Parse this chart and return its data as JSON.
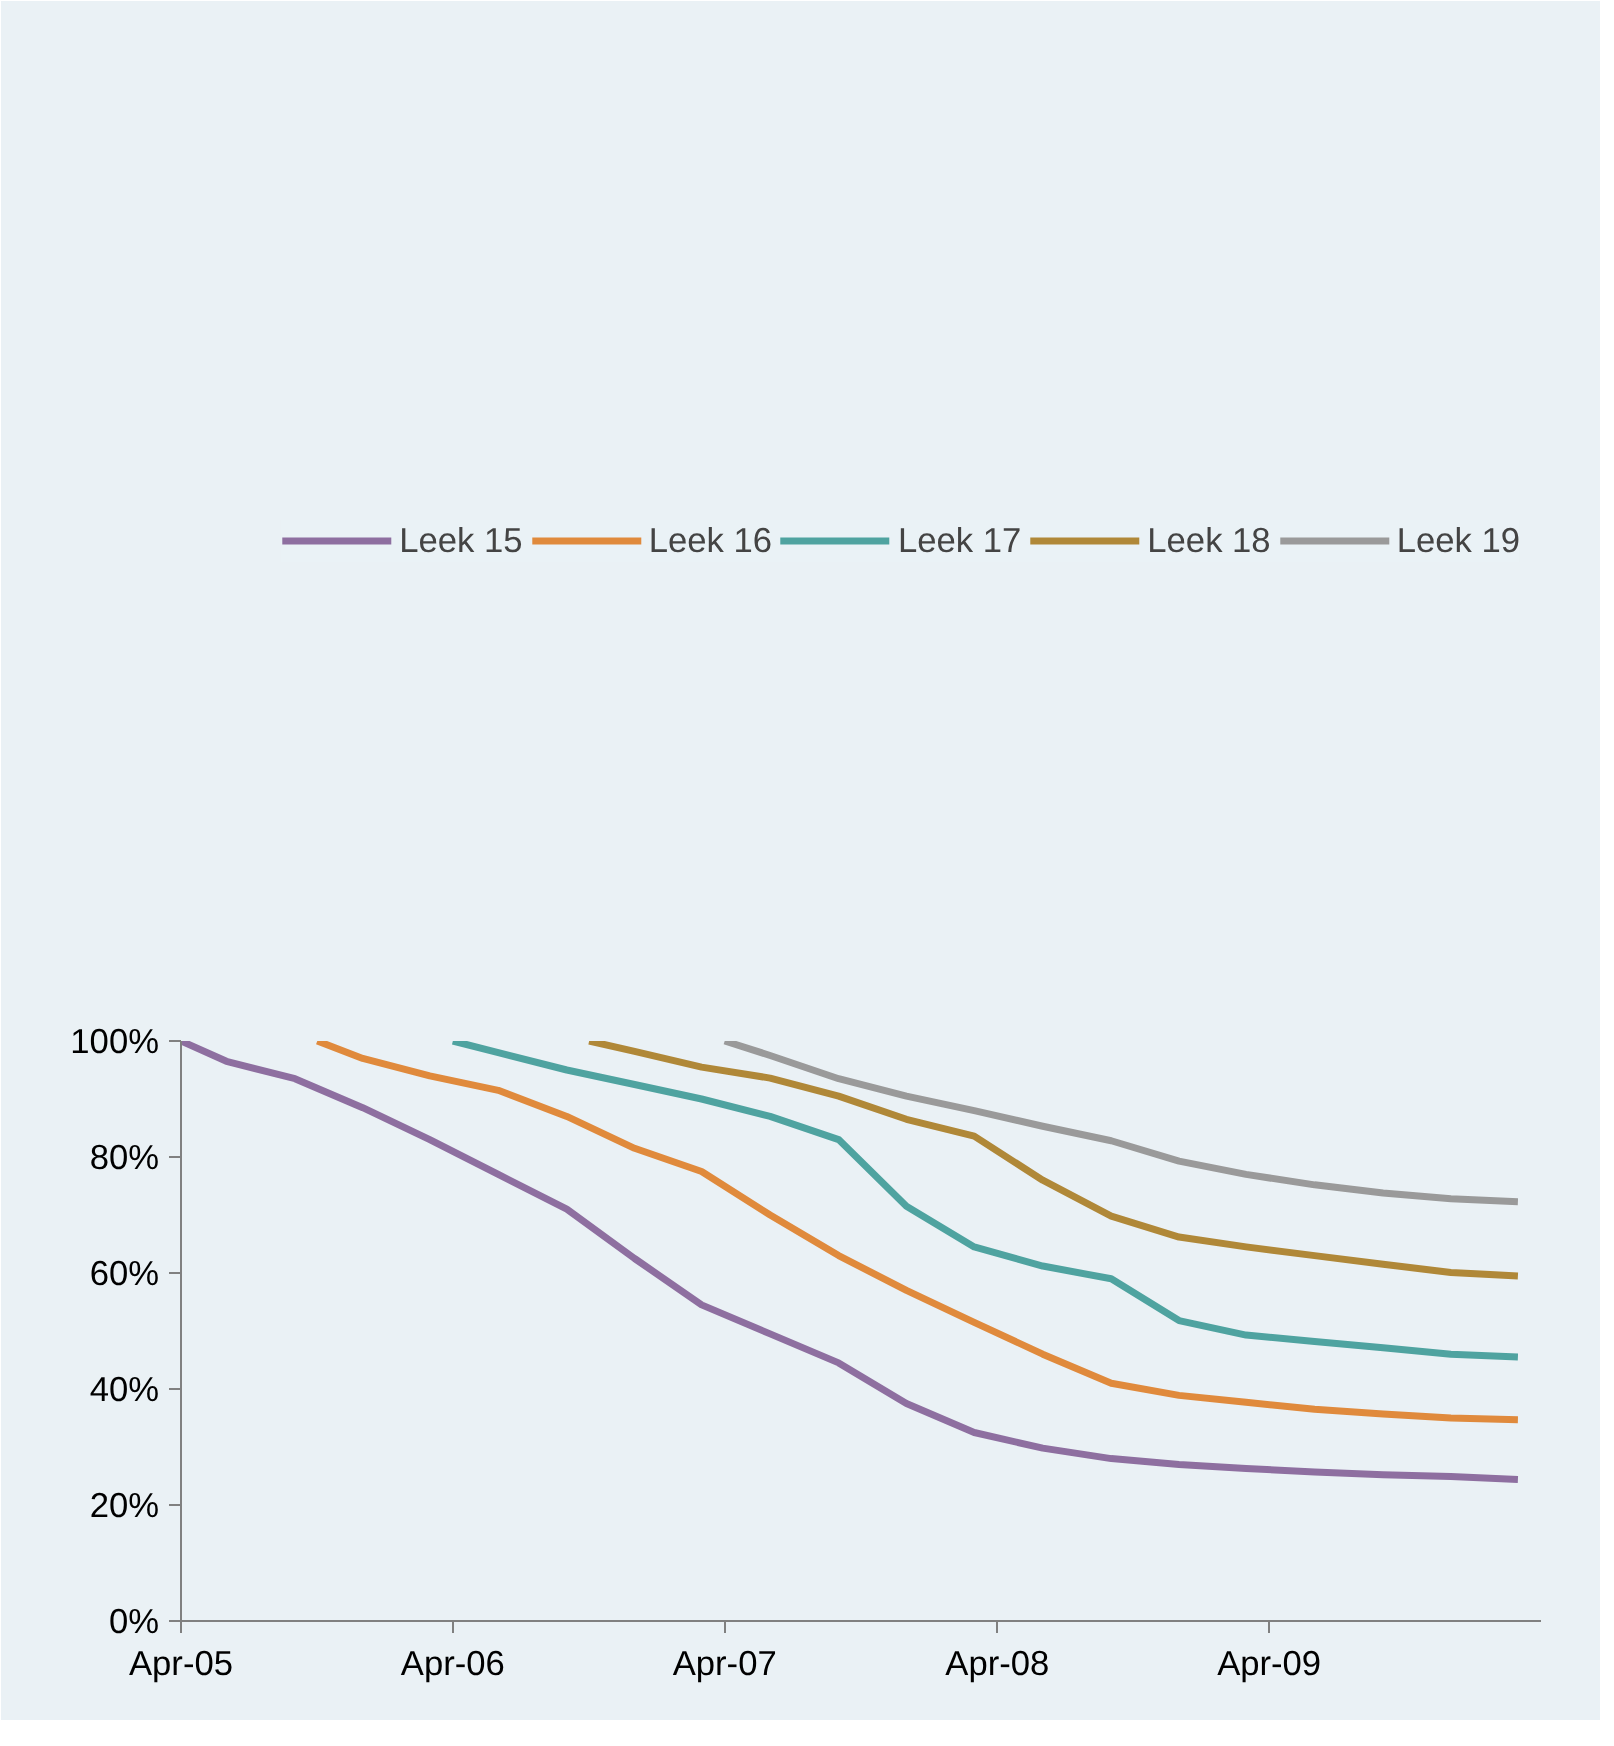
{
  "chart_data": {
    "type": "line",
    "legend": "top",
    "grid": false,
    "marker": "none",
    "line_style": "solid",
    "xlim": [
      "2005-04",
      "2010-04"
    ],
    "xticks": [
      {
        "value": "2005-04",
        "label": "Apr-05"
      },
      {
        "value": "2006-04",
        "label": "Apr-06"
      },
      {
        "value": "2007-04",
        "label": "Apr-07"
      },
      {
        "value": "2008-04",
        "label": "Apr-08"
      },
      {
        "value": "2009-04",
        "label": "Apr-09"
      }
    ],
    "ylim": [
      0,
      100
    ],
    "yticks": [
      {
        "value": 0,
        "label": "0%"
      },
      {
        "value": 20,
        "label": "20%"
      },
      {
        "value": 40,
        "label": "40%"
      },
      {
        "value": 60,
        "label": "60%"
      },
      {
        "value": 80,
        "label": "80%"
      },
      {
        "value": 100,
        "label": "100%"
      }
    ],
    "series": [
      {
        "name": "Leek 15",
        "color": "#8e6fa0",
        "x": [
          "2005-04",
          "2005-06",
          "2005-09",
          "2005-12",
          "2006-03",
          "2006-06",
          "2006-09",
          "2006-12",
          "2007-03",
          "2007-06",
          "2007-09",
          "2007-12",
          "2008-03",
          "2008-06",
          "2008-09",
          "2008-12",
          "2009-03",
          "2009-06",
          "2009-09",
          "2009-12",
          "2010-03"
        ],
        "values": [
          100,
          96.5,
          93.5,
          88.5,
          83,
          77,
          71,
          62.5,
          54.5,
          49.5,
          44.5,
          37.5,
          32.5,
          29.8,
          28,
          27,
          26.3,
          25.7,
          25.2,
          24.9,
          24.4
        ]
      },
      {
        "name": "Leek 16",
        "color": "#e08a3c",
        "x": [
          "2005-10",
          "2005-12",
          "2006-03",
          "2006-06",
          "2006-09",
          "2006-12",
          "2007-03",
          "2007-06",
          "2007-09",
          "2007-12",
          "2008-03",
          "2008-06",
          "2008-09",
          "2008-12",
          "2009-03",
          "2009-06",
          "2009-09",
          "2009-12",
          "2010-03"
        ],
        "values": [
          100,
          97,
          94,
          91.5,
          87,
          81.5,
          77.5,
          70,
          63,
          57,
          51.5,
          46,
          41,
          38.9,
          37.7,
          36.5,
          35.7,
          35,
          34.7
        ]
      },
      {
        "name": "Leek 17",
        "color": "#4fa3a0",
        "x": [
          "2006-04",
          "2006-06",
          "2006-09",
          "2006-12",
          "2007-03",
          "2007-06",
          "2007-09",
          "2007-12",
          "2008-03",
          "2008-06",
          "2008-09",
          "2008-12",
          "2009-03",
          "2009-06",
          "2009-09",
          "2009-12",
          "2010-03"
        ],
        "values": [
          100,
          98,
          95,
          92.5,
          90,
          87,
          83,
          71.5,
          64.5,
          61.2,
          59,
          51.8,
          49.3,
          48.2,
          47.1,
          46,
          45.5
        ]
      },
      {
        "name": "Leek 18",
        "color": "#b08838",
        "x": [
          "2006-10",
          "2006-12",
          "2007-03",
          "2007-06",
          "2007-09",
          "2007-12",
          "2008-03",
          "2008-06",
          "2008-09",
          "2008-12",
          "2009-03",
          "2009-06",
          "2009-09",
          "2009-12",
          "2010-03"
        ],
        "values": [
          100,
          98.2,
          95.5,
          93.6,
          90.5,
          86.5,
          83.6,
          76,
          69.8,
          66.2,
          64.5,
          63,
          61.5,
          60.1,
          59.5
        ]
      },
      {
        "name": "Leek 19",
        "color": "#9a9a9a",
        "x": [
          "2007-04",
          "2007-06",
          "2007-09",
          "2007-12",
          "2008-03",
          "2008-06",
          "2008-09",
          "2008-12",
          "2009-03",
          "2009-06",
          "2009-09",
          "2009-12",
          "2010-03"
        ],
        "values": [
          100,
          97.5,
          93.5,
          90.5,
          88,
          85.3,
          82.8,
          79.3,
          77,
          75.2,
          73.8,
          72.8,
          72.3
        ]
      }
    ]
  }
}
